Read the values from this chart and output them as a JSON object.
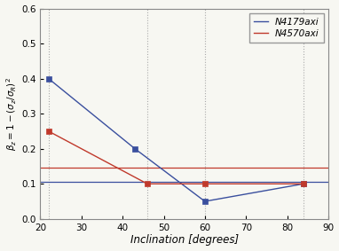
{
  "N4179axi": {
    "x": [
      22,
      43,
      60,
      84
    ],
    "y": [
      0.4,
      0.2,
      0.05,
      0.1
    ],
    "color": "#3a4f9e",
    "hline": 0.105,
    "label": "N4179axi"
  },
  "N4570axi": {
    "x": [
      22,
      46,
      60,
      84
    ],
    "y": [
      0.25,
      0.1,
      0.1,
      0.1
    ],
    "color": "#c0392b",
    "hline": 0.145,
    "label": "N4570axi"
  },
  "vlines": [
    22,
    46,
    60,
    84
  ],
  "xlim": [
    20,
    90
  ],
  "ylim": [
    0.0,
    0.6
  ],
  "xticks": [
    20,
    30,
    40,
    50,
    60,
    70,
    80,
    90
  ],
  "yticks": [
    0.0,
    0.1,
    0.2,
    0.3,
    0.4,
    0.5,
    0.6
  ],
  "xlabel": "Inclination [degrees]",
  "ylabel": "$\\beta_z=1-(\\sigma_z/\\sigma_R)^2$",
  "background_color": "#f7f7f2",
  "marker": "s",
  "marker_size": 4,
  "linewidth": 1.0,
  "vline_color": "#aaaaaa",
  "vline_lw": 0.8
}
